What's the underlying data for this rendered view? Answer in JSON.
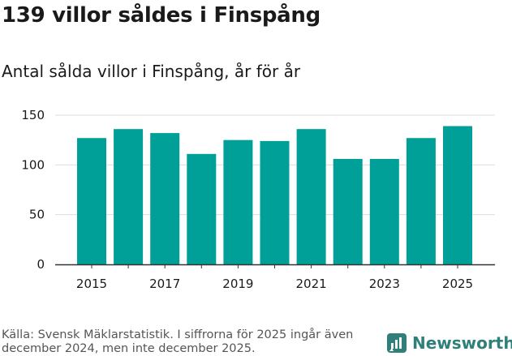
{
  "header": {
    "title": "139 villor såldes i Finspång",
    "subtitle": "Antal sålda villor i Finspång, år för år"
  },
  "footer": {
    "source": "Källa: Svensk Mäklarstatistik. I siffrorna för 2025 ingår även december 2024, men inte december 2025.",
    "brand": "Newsworthy",
    "brand_icon": "newsworthy-logo-icon"
  },
  "colors": {
    "bar": "#00a098",
    "brand": "#2f7f7a",
    "grid": "#dddddd",
    "axis": "#333333"
  },
  "chart_data": {
    "type": "bar",
    "title": "Antal sålda villor i Finspång, år för år",
    "xlabel": "",
    "ylabel": "",
    "categories": [
      "2015",
      "2016",
      "2017",
      "2018",
      "2019",
      "2020",
      "2021",
      "2022",
      "2023",
      "2024",
      "2025"
    ],
    "values": [
      127,
      136,
      132,
      111,
      125,
      124,
      136,
      106,
      106,
      127,
      139
    ],
    "ylim": [
      0,
      150
    ],
    "yticks": [
      0,
      50,
      100,
      150
    ],
    "xtick_labels": [
      "2015",
      "",
      "2017",
      "",
      "2019",
      "",
      "2021",
      "",
      "2023",
      "",
      "2025"
    ],
    "grid": true
  }
}
